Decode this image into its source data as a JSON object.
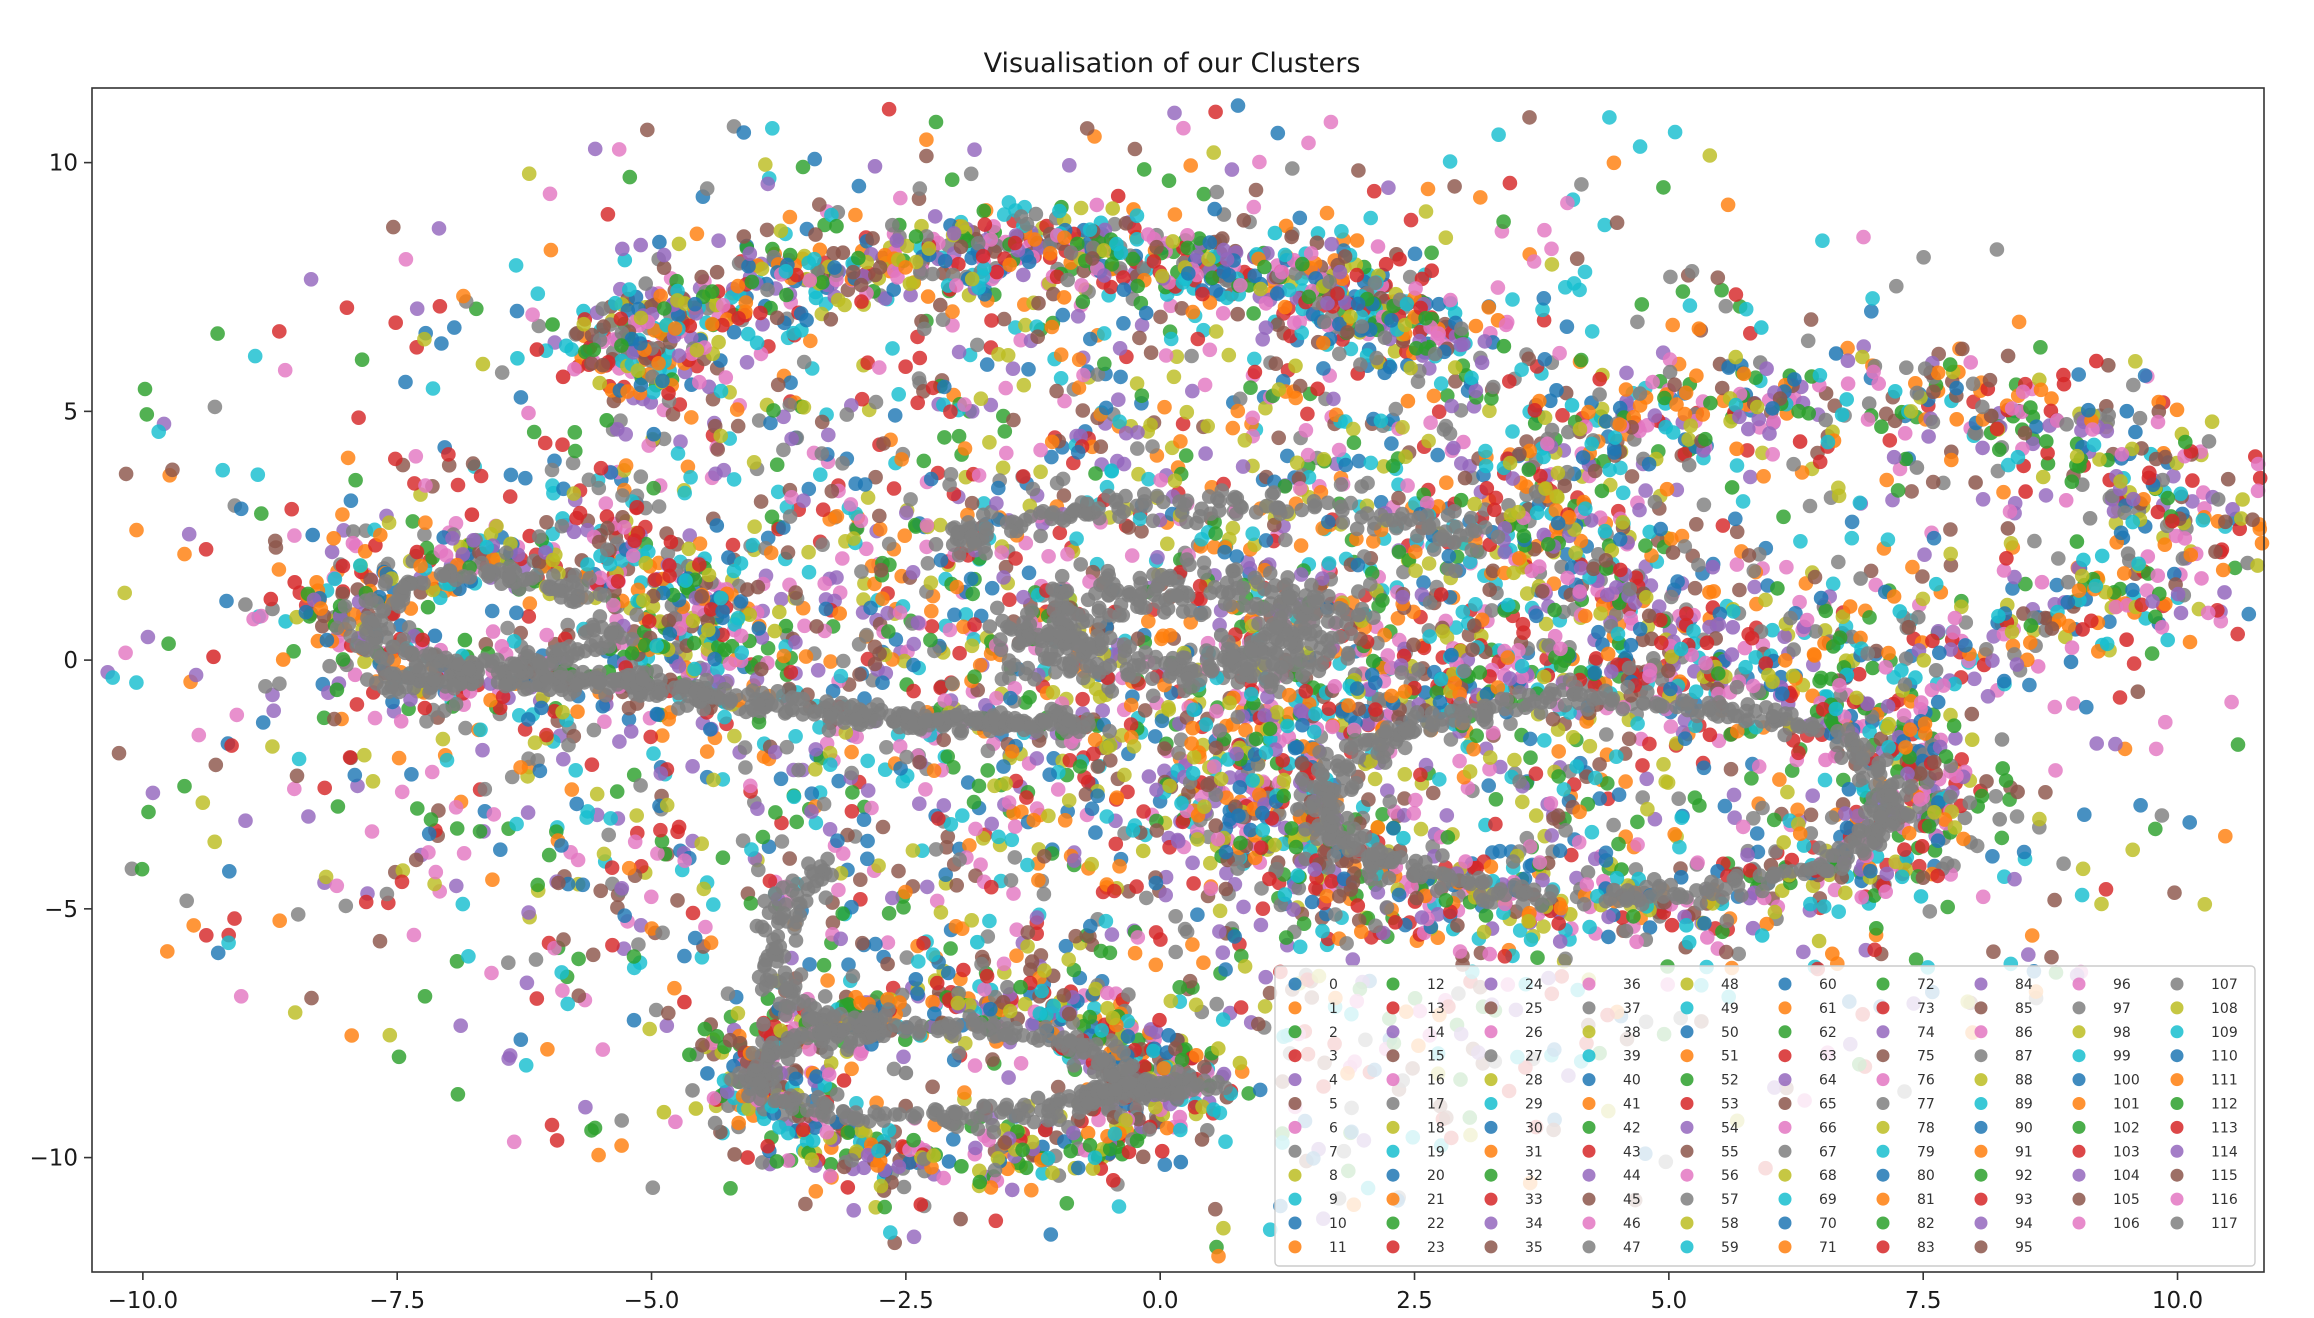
{
  "chart_data": {
    "type": "scatter",
    "title": "Visualisation of our Clusters",
    "xlabel": "",
    "ylabel": "",
    "xlim": [
      -10.5,
      10.85
    ],
    "ylim": [
      -12.3,
      11.5
    ],
    "xticks": [
      -10.0,
      -7.5,
      -5.0,
      -2.5,
      0.0,
      2.5,
      5.0,
      7.5,
      10.0
    ],
    "xtick_labels": [
      "−10.0",
      "−7.5",
      "−5.0",
      "−2.5",
      "0.0",
      "2.5",
      "5.0",
      "7.5",
      "10.0"
    ],
    "yticks": [
      10,
      5,
      0,
      -5,
      -10
    ],
    "ytick_labels": [
      "10",
      "5",
      "0",
      "−5",
      "−10"
    ],
    "grid": false,
    "legend_position": "lower-right",
    "legend_columns": 10,
    "legend_labels": [
      "0",
      "1",
      "2",
      "3",
      "4",
      "5",
      "6",
      "7",
      "8",
      "9",
      "10",
      "11",
      "12",
      "13",
      "14",
      "15",
      "16",
      "17",
      "18",
      "19",
      "20",
      "21",
      "22",
      "23",
      "24",
      "25",
      "26",
      "27",
      "28",
      "29",
      "30",
      "31",
      "32",
      "33",
      "34",
      "35",
      "36",
      "37",
      "38",
      "39",
      "40",
      "41",
      "42",
      "43",
      "44",
      "45",
      "46",
      "47",
      "48",
      "49",
      "50",
      "51",
      "52",
      "53",
      "54",
      "55",
      "56",
      "57",
      "58",
      "59",
      "60",
      "61",
      "62",
      "63",
      "64",
      "65",
      "66",
      "67",
      "68",
      "69",
      "70",
      "71",
      "72",
      "73",
      "74",
      "75",
      "76",
      "77",
      "78",
      "79",
      "80",
      "81",
      "82",
      "83",
      "84",
      "85",
      "86",
      "87",
      "88",
      "89",
      "90",
      "91",
      "92",
      "93",
      "94",
      "95",
      "96",
      "97",
      "98",
      "99",
      "100",
      "101",
      "102",
      "103",
      "104",
      "105",
      "106",
      "107",
      "108",
      "109",
      "110",
      "111",
      "112",
      "113",
      "114",
      "115",
      "116",
      "117"
    ],
    "palette": [
      "#1f77b4",
      "#ff7f0e",
      "#2ca02c",
      "#d62728",
      "#9467bd",
      "#8c564b",
      "#e377c2",
      "#7f7f7f",
      "#bcbd22",
      "#17becf"
    ],
    "dense_cluster_color": "#7f7f7f",
    "num_clusters": 118,
    "series_samples": [
      {
        "cluster": 7,
        "points": [
          [
            -0.4,
            0.9
          ],
          [
            0.3,
            1.0
          ],
          [
            -0.8,
            0.3
          ],
          [
            0.6,
            0.5
          ],
          [
            -0.2,
            1.3
          ],
          [
            0.9,
            0.2
          ]
        ]
      },
      {
        "cluster": 7,
        "points": [
          [
            -7.5,
            1.2
          ],
          [
            -6.0,
            -0.6
          ],
          [
            -4.0,
            -1.0
          ],
          [
            -2.0,
            -1.1
          ],
          [
            -7.8,
            0.2
          ],
          [
            -6.6,
            1.8
          ]
        ]
      },
      {
        "cluster": 7,
        "points": [
          [
            -3.3,
            -7.5
          ],
          [
            -2.5,
            -8.3
          ],
          [
            -1.2,
            -8.8
          ],
          [
            -0.3,
            -8.5
          ],
          [
            0.2,
            -8.7
          ],
          [
            -2.9,
            -7.2
          ]
        ]
      }
    ]
  }
}
